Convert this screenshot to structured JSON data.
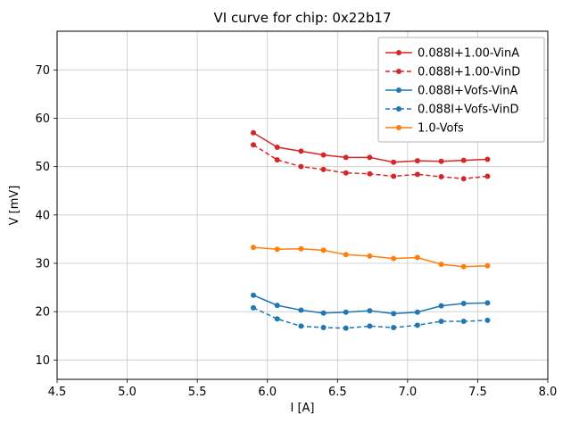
{
  "chart_data": {
    "type": "line",
    "title": "VI curve for chip: 0x22b17",
    "xlabel": "I [A]",
    "ylabel": "V [mV]",
    "xlim": [
      4.5,
      8.0
    ],
    "ylim": [
      6,
      78
    ],
    "xticks": [
      4.5,
      5.0,
      5.5,
      6.0,
      6.5,
      7.0,
      7.5,
      8.0
    ],
    "yticks": [
      10,
      20,
      30,
      40,
      50,
      60,
      70
    ],
    "grid": true,
    "legend_position": "upper right",
    "x": [
      5.9,
      6.07,
      6.24,
      6.4,
      6.56,
      6.73,
      6.9,
      7.07,
      7.24,
      7.4,
      7.57
    ],
    "series": [
      {
        "name": "0.088I+1.00-VinA",
        "color": "#d62728",
        "style": "solid",
        "marker": "circle",
        "values": [
          57.0,
          54.0,
          53.2,
          52.4,
          51.9,
          51.9,
          50.9,
          51.2,
          51.1,
          51.3,
          51.5
        ]
      },
      {
        "name": "0.088I+1.00-VinD",
        "color": "#d62728",
        "style": "dashed",
        "marker": "circle",
        "values": [
          54.5,
          51.4,
          50.0,
          49.4,
          48.7,
          48.5,
          48.0,
          48.4,
          47.9,
          47.5,
          48.0
        ]
      },
      {
        "name": "0.088I+Vofs-VinA",
        "color": "#1f77b4",
        "style": "solid",
        "marker": "circle",
        "values": [
          23.4,
          21.3,
          20.3,
          19.7,
          19.9,
          20.2,
          19.6,
          19.9,
          21.2,
          21.7,
          21.8
        ]
      },
      {
        "name": "0.088I+Vofs-VinD",
        "color": "#1f77b4",
        "style": "dashed",
        "marker": "circle",
        "values": [
          20.8,
          18.5,
          17.0,
          16.7,
          16.6,
          17.0,
          16.7,
          17.2,
          18.0,
          18.0,
          18.2
        ]
      },
      {
        "name": "1.0-Vofs",
        "color": "#ff7f0e",
        "style": "solid",
        "marker": "circle",
        "values": [
          33.3,
          32.9,
          33.0,
          32.7,
          31.8,
          31.5,
          31.0,
          31.2,
          29.8,
          29.3,
          29.5
        ]
      }
    ]
  }
}
